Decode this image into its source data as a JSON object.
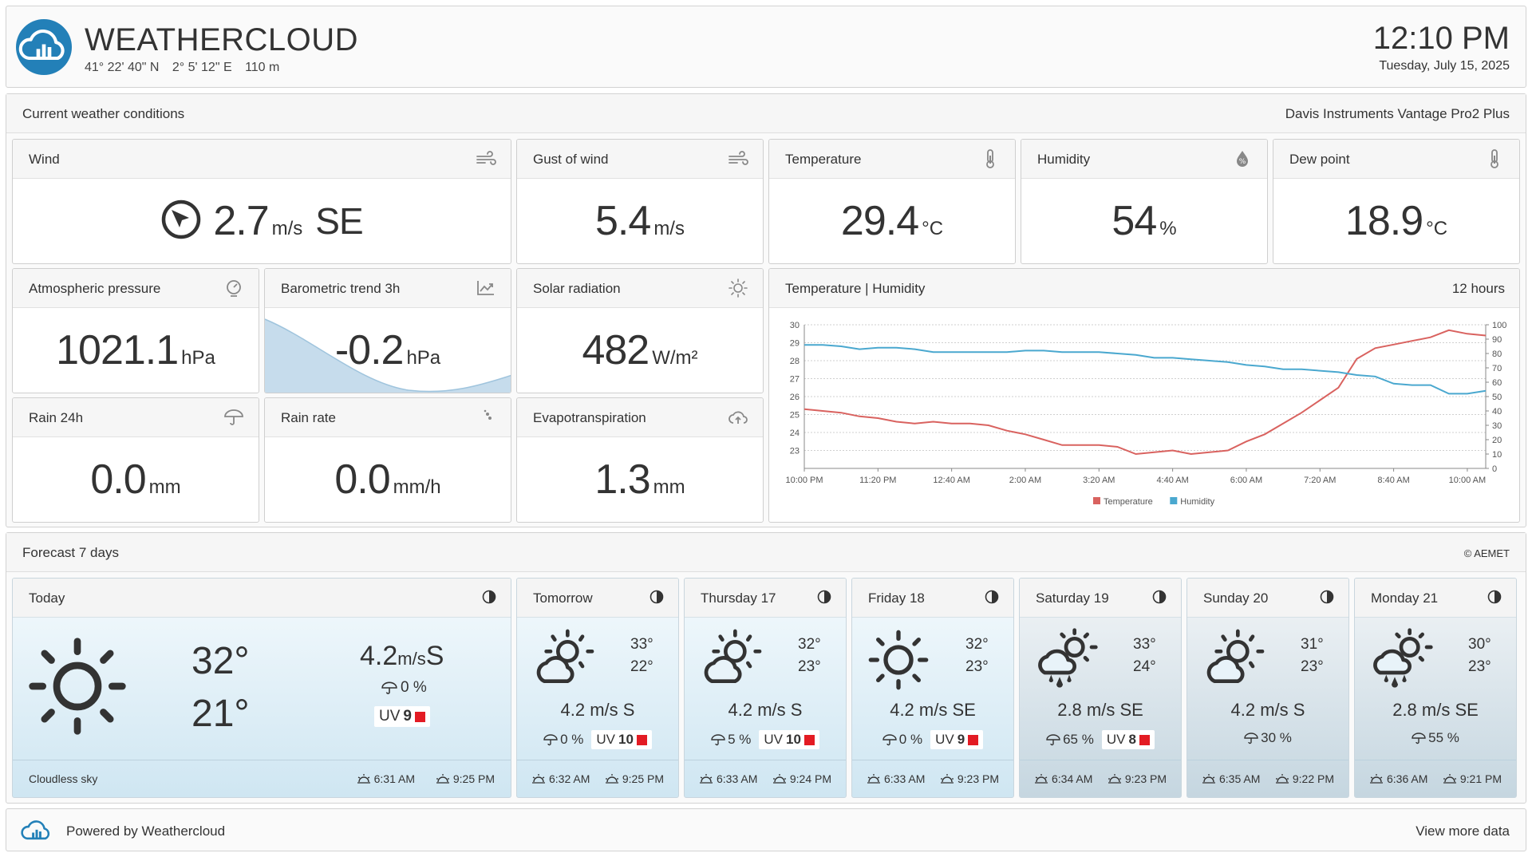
{
  "header": {
    "brand": "WEATHERCLOUD",
    "lat": "41° 22' 40\" N",
    "lon": "2° 5' 12\" E",
    "alt": "110 m",
    "time": "12:10 PM",
    "date": "Tuesday, July 15, 2025",
    "brand_color": "#2380b8"
  },
  "current": {
    "title": "Current weather conditions",
    "device": "Davis Instruments Vantage Pro2 Plus",
    "wind": {
      "label": "Wind",
      "value": "2.7",
      "unit": "m/s",
      "dir": "SE",
      "icon": "wind-icon"
    },
    "gust": {
      "label": "Gust of wind",
      "value": "5.4",
      "unit": "m/s",
      "icon": "wind-icon"
    },
    "temp": {
      "label": "Temperature",
      "value": "29.4",
      "unit": "°C",
      "icon": "thermometer-icon"
    },
    "hum": {
      "label": "Humidity",
      "value": "54",
      "unit": "%",
      "icon": "humidity-icon"
    },
    "dew": {
      "label": "Dew point",
      "value": "18.9",
      "unit": "°C",
      "icon": "thermometer-icon"
    },
    "pres": {
      "label": "Atmospheric pressure",
      "value": "1021.1",
      "unit": "hPa",
      "icon": "gauge-icon"
    },
    "baro": {
      "label": "Barometric trend 3h",
      "value": "-0.2",
      "unit": "hPa",
      "icon": "trend-chart-icon"
    },
    "solar": {
      "label": "Solar radiation",
      "value": "482",
      "unit": "W/m²",
      "icon": "sun-icon"
    },
    "rain24": {
      "label": "Rain 24h",
      "value": "0.0",
      "unit": "mm",
      "icon": "umbrella-icon"
    },
    "rainrate": {
      "label": "Rain rate",
      "value": "0.0",
      "unit": "mm/h",
      "icon": "raindrops-icon"
    },
    "evap": {
      "label": "Evapotranspiration",
      "value": "1.3",
      "unit": "mm",
      "icon": "cloud-upload-icon"
    }
  },
  "chart_card": {
    "title": "Temperature | Humidity",
    "range": "12 hours"
  },
  "chart_data": {
    "type": "line",
    "x": [
      "10:00 PM",
      "10:20 PM",
      "10:40 PM",
      "11:00 PM",
      "11:20 PM",
      "11:40 PM",
      "12:00 AM",
      "12:20 AM",
      "12:40 AM",
      "1:00 AM",
      "1:20 AM",
      "1:40 AM",
      "2:00 AM",
      "2:20 AM",
      "2:40 AM",
      "3:00 AM",
      "3:20 AM",
      "3:40 AM",
      "4:00 AM",
      "4:20 AM",
      "4:40 AM",
      "5:00 AM",
      "5:20 AM",
      "5:40 AM",
      "6:00 AM",
      "6:20 AM",
      "6:40 AM",
      "7:00 AM",
      "7:20 AM",
      "7:40 AM",
      "8:00 AM",
      "8:20 AM",
      "8:40 AM",
      "9:00 AM",
      "9:20 AM",
      "9:40 AM",
      "10:00 AM",
      "10:20 AM"
    ],
    "xticks": [
      "10:00 PM",
      "11:20 PM",
      "12:40 AM",
      "2:00 AM",
      "3:20 AM",
      "4:40 AM",
      "6:00 AM",
      "7:20 AM",
      "8:40 AM",
      "10:00 AM"
    ],
    "series": [
      {
        "name": "Temperature",
        "axis": "left",
        "color": "#d9625f",
        "values": [
          25.3,
          25.2,
          25.1,
          24.9,
          24.8,
          24.6,
          24.5,
          24.6,
          24.5,
          24.5,
          24.4,
          24.1,
          23.9,
          23.6,
          23.3,
          23.3,
          23.3,
          23.2,
          22.8,
          22.9,
          23.0,
          22.8,
          22.9,
          23.0,
          23.5,
          23.9,
          24.5,
          25.1,
          25.8,
          26.5,
          28.1,
          28.7,
          28.9,
          29.1,
          29.3,
          29.7,
          29.5,
          29.4
        ]
      },
      {
        "name": "Humidity",
        "axis": "right",
        "color": "#4aa8cf",
        "values": [
          86,
          86,
          85,
          83,
          84,
          84,
          83,
          81,
          81,
          81,
          81,
          81,
          82,
          82,
          81,
          81,
          81,
          80,
          79,
          77,
          77,
          76,
          75,
          74,
          72,
          71,
          69,
          69,
          68,
          67,
          65,
          64,
          59,
          58,
          58,
          52,
          52,
          54
        ]
      }
    ],
    "y_left": {
      "min": 22,
      "max": 30,
      "ticks": [
        23,
        24,
        25,
        26,
        27,
        28,
        29,
        30
      ]
    },
    "y_right": {
      "min": 0,
      "max": 100,
      "ticks": [
        0,
        10,
        20,
        30,
        40,
        50,
        60,
        70,
        80,
        90,
        100
      ]
    },
    "legend_position": "bottom",
    "grid": true
  },
  "forecast": {
    "title": "Forecast 7 days",
    "source": "© AEMET",
    "today": {
      "label": "Today",
      "hi": "32°",
      "lo": "21°",
      "wind_val": "4.2",
      "wind_unit": "m/s",
      "wind_dir": "S",
      "rain": "0 %",
      "uv_label": "UV",
      "uv": "9",
      "desc": "Cloudless sky",
      "sunrise": "6:31 AM",
      "sunset": "9:25 PM",
      "icon": "sun-icon"
    },
    "days": [
      {
        "label": "Tomorrow",
        "hi": "33°",
        "lo": "22°",
        "wind": "4.2 m/s S",
        "rain": "0 %",
        "uv_label": "UV",
        "uv": "10",
        "sunrise": "6:32 AM",
        "sunset": "9:25 PM",
        "icon": "sun-cloud-icon"
      },
      {
        "label": "Thursday 17",
        "hi": "32°",
        "lo": "23°",
        "wind": "4.2 m/s S",
        "rain": "5 %",
        "uv_label": "UV",
        "uv": "10",
        "sunrise": "6:33 AM",
        "sunset": "9:24 PM",
        "icon": "sun-cloud-icon"
      },
      {
        "label": "Friday 18",
        "hi": "32°",
        "lo": "23°",
        "wind": "4.2 m/s SE",
        "rain": "0 %",
        "uv_label": "UV",
        "uv": "9",
        "sunrise": "6:33 AM",
        "sunset": "9:23 PM",
        "icon": "sun-icon"
      },
      {
        "label": "Saturday 19",
        "hi": "33°",
        "lo": "24°",
        "wind": "2.8 m/s SE",
        "rain": "65 %",
        "uv_label": "UV",
        "uv": "8",
        "sunrise": "6:34 AM",
        "sunset": "9:23 PM",
        "icon": "sun-cloud-rain-icon"
      },
      {
        "label": "Sunday 20",
        "hi": "31°",
        "lo": "23°",
        "wind": "4.2 m/s S",
        "rain": "30 %",
        "uv_label": "",
        "uv": "",
        "sunrise": "6:35 AM",
        "sunset": "9:22 PM",
        "icon": "sun-cloud-icon"
      },
      {
        "label": "Monday 21",
        "hi": "30°",
        "lo": "23°",
        "wind": "2.8 m/s SE",
        "rain": "55 %",
        "uv_label": "",
        "uv": "",
        "sunrise": "6:36 AM",
        "sunset": "9:21 PM",
        "icon": "sun-cloud-rain-icon"
      }
    ]
  },
  "footer": {
    "powered": "Powered by Weathercloud",
    "more": "View more data"
  }
}
